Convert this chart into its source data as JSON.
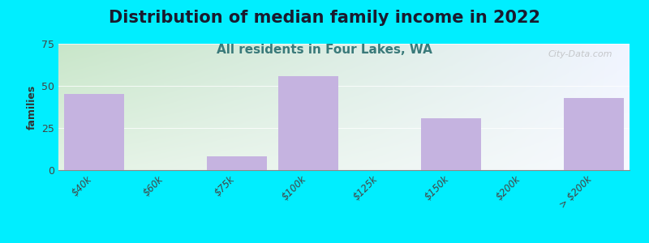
{
  "title": "Distribution of median family income in 2022",
  "subtitle": "All residents in Four Lakes, WA",
  "categories": [
    "$40k",
    "$60k",
    "$75k",
    "$100k",
    "$125k",
    "$150k",
    "$200k",
    "> $200k"
  ],
  "values": [
    45,
    0,
    8,
    56,
    0,
    31,
    0,
    43
  ],
  "bar_color": "#c5b3e0",
  "bg_outer": "#00eeff",
  "ylabel": "families",
  "ylim": [
    0,
    75
  ],
  "yticks": [
    0,
    25,
    50,
    75
  ],
  "title_fontsize": 15,
  "subtitle_fontsize": 11,
  "title_color": "#1a1a2e",
  "subtitle_color": "#3a7a7a",
  "watermark": "City-Data.com",
  "grad_left": "#c8e6c9",
  "grad_right": "#f0f4ff"
}
